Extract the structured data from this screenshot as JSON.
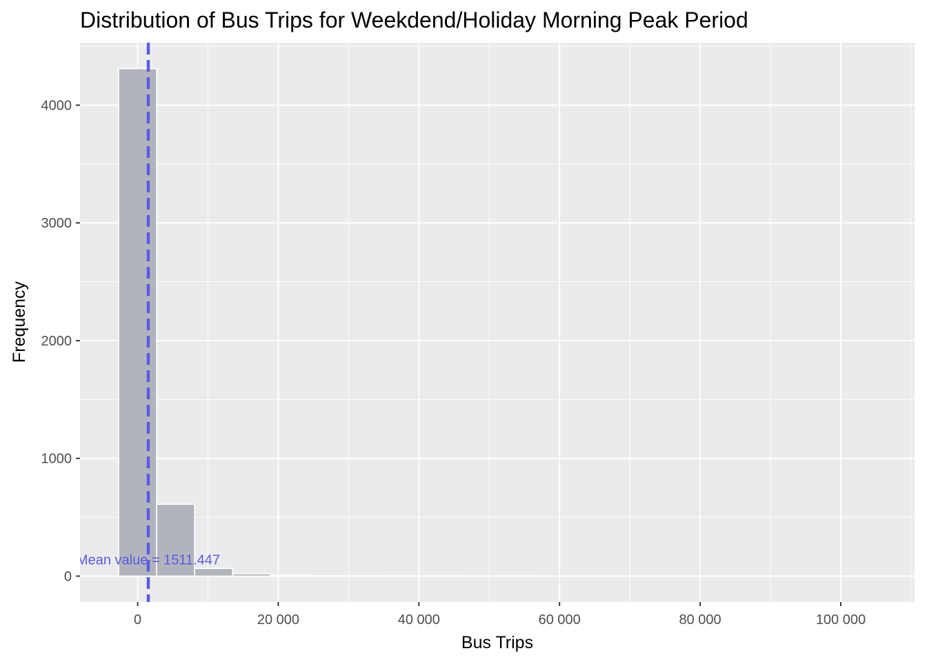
{
  "chart_data": {
    "type": "bar",
    "title": "Distribution of Bus Trips for Weekdend/Holiday Morning Peak Period",
    "xlabel": "Bus Trips",
    "ylabel": "Frequency",
    "x_ticks": [
      0,
      20000,
      40000,
      60000,
      80000,
      100000
    ],
    "x_tick_labels": [
      "0",
      "20 000",
      "40 000",
      "60 000",
      "80 000",
      "100 000"
    ],
    "y_ticks": [
      0,
      1000,
      2000,
      3000,
      4000
    ],
    "y_tick_labels": [
      "0",
      "1000",
      "2000",
      "3000",
      "4000"
    ],
    "xlim": [
      -8200,
      110500
    ],
    "ylim": [
      -220,
      4530
    ],
    "bin_width": 5400,
    "bins": [
      {
        "x_start": -2700,
        "x_end": 2700,
        "count": 4310
      },
      {
        "x_start": 2700,
        "x_end": 8100,
        "count": 610
      },
      {
        "x_start": 8100,
        "x_end": 13500,
        "count": 65
      },
      {
        "x_start": 13500,
        "x_end": 18900,
        "count": 20
      },
      {
        "x_start": 18900,
        "x_end": 24300,
        "count": 8
      },
      {
        "x_start": 24300,
        "x_end": 29700,
        "count": 4
      },
      {
        "x_start": 29700,
        "x_end": 35100,
        "count": 3
      },
      {
        "x_start": 35100,
        "x_end": 40500,
        "count": 2
      },
      {
        "x_start": 40500,
        "x_end": 45900,
        "count": 2
      },
      {
        "x_start": 45900,
        "x_end": 51300,
        "count": 1
      },
      {
        "x_start": 51300,
        "x_end": 56700,
        "count": 2
      },
      {
        "x_start": 56700,
        "x_end": 62100,
        "count": 1
      },
      {
        "x_start": 62100,
        "x_end": 67500,
        "count": 1
      },
      {
        "x_start": 67500,
        "x_end": 72900,
        "count": 1
      },
      {
        "x_start": 72900,
        "x_end": 78300,
        "count": 1
      },
      {
        "x_start": 78300,
        "x_end": 83700,
        "count": 1
      },
      {
        "x_start": 83700,
        "x_end": 89100,
        "count": 1
      },
      {
        "x_start": 89100,
        "x_end": 94500,
        "count": 1
      },
      {
        "x_start": 94500,
        "x_end": 99900,
        "count": 1
      },
      {
        "x_start": 99900,
        "x_end": 105300,
        "count": 1
      }
    ],
    "mean_line": {
      "value": 1511.447,
      "label": "Mean value = 1511.447",
      "color": "#5b5be6",
      "style": "dashed"
    },
    "colors": {
      "panel": "#ebebeb",
      "grid": "#ffffff",
      "bar_fill": "#b1b4bb",
      "bar_stroke": "#ffffff",
      "tick_text": "#4d4d4d"
    },
    "grid": true,
    "legend": "none"
  }
}
